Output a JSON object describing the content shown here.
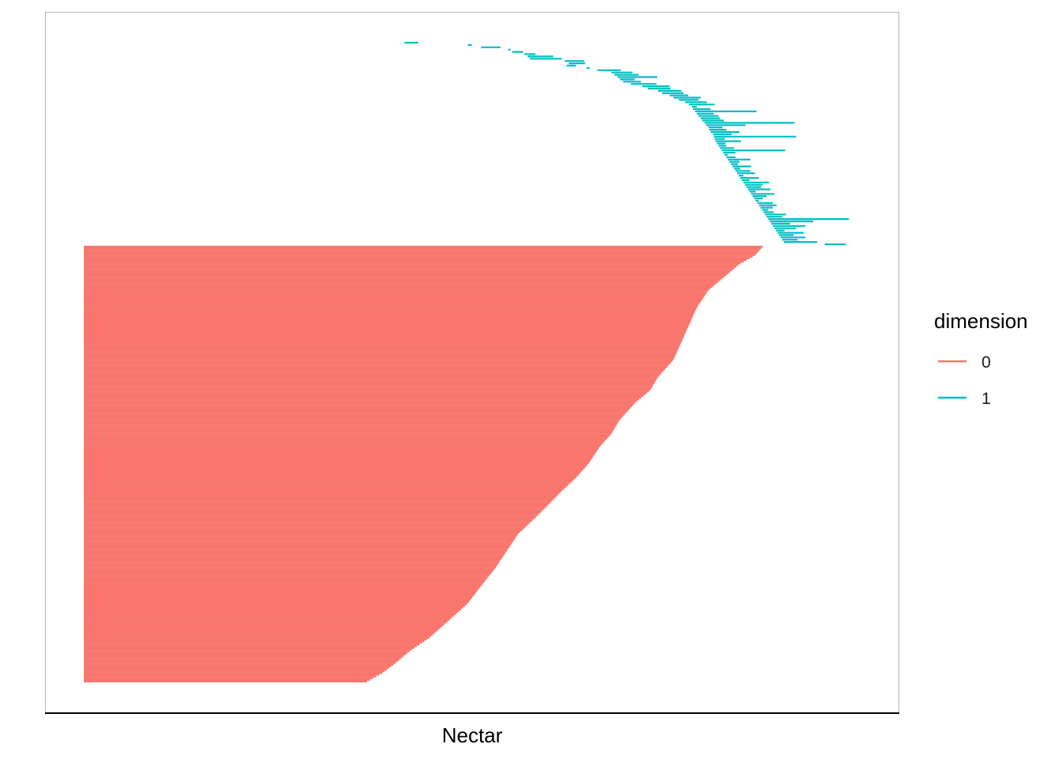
{
  "chart_data": {
    "type": "barcode",
    "xlabel": "Nectar",
    "ylabel": "",
    "legend": {
      "title": "dimension",
      "position": "right",
      "entries": [
        {
          "label": "0",
          "color": "#F8766D"
        },
        {
          "label": "1",
          "color": "#00BFC4"
        }
      ]
    },
    "x_ticks_shown": false,
    "y_ticks_shown": false,
    "grid": false,
    "dimension_0": {
      "bar_count": 260,
      "birth": 0,
      "death_profile": [
        [
          0.0,
          0.875
        ],
        [
          0.02,
          0.865
        ],
        [
          0.04,
          0.845
        ],
        [
          0.07,
          0.825
        ],
        [
          0.1,
          0.805
        ],
        [
          0.14,
          0.79
        ],
        [
          0.18,
          0.78
        ],
        [
          0.22,
          0.77
        ],
        [
          0.26,
          0.76
        ],
        [
          0.3,
          0.74
        ],
        [
          0.33,
          0.73
        ],
        [
          0.36,
          0.71
        ],
        [
          0.4,
          0.69
        ],
        [
          0.43,
          0.68
        ],
        [
          0.46,
          0.665
        ],
        [
          0.5,
          0.65
        ],
        [
          0.53,
          0.635
        ],
        [
          0.56,
          0.617
        ],
        [
          0.6,
          0.595
        ],
        [
          0.63,
          0.578
        ],
        [
          0.66,
          0.56
        ],
        [
          0.7,
          0.545
        ],
        [
          0.74,
          0.53
        ],
        [
          0.78,
          0.512
        ],
        [
          0.82,
          0.495
        ],
        [
          0.86,
          0.47
        ],
        [
          0.9,
          0.445
        ],
        [
          0.93,
          0.42
        ],
        [
          0.96,
          0.4
        ],
        [
          0.98,
          0.385
        ],
        [
          1.0,
          0.365
        ]
      ]
    },
    "dimension_1": {
      "bars": [
        [
          0.413,
          0.431
        ],
        [
          0.495,
          0.5
        ],
        [
          0.512,
          0.537
        ],
        [
          0.547,
          0.55
        ],
        [
          0.552,
          0.566
        ],
        [
          0.568,
          0.582
        ],
        [
          0.572,
          0.605
        ],
        [
          0.575,
          0.616
        ],
        [
          0.62,
          0.645
        ],
        [
          0.625,
          0.646
        ],
        [
          0.622,
          0.634
        ],
        [
          0.648,
          0.652
        ],
        [
          0.662,
          0.692
        ],
        [
          0.68,
          0.707
        ],
        [
          0.684,
          0.715
        ],
        [
          0.688,
          0.739
        ],
        [
          0.691,
          0.71
        ],
        [
          0.695,
          0.718
        ],
        [
          0.705,
          0.738
        ],
        [
          0.72,
          0.755
        ],
        [
          0.727,
          0.756
        ],
        [
          0.74,
          0.77
        ],
        [
          0.745,
          0.773
        ],
        [
          0.755,
          0.779
        ],
        [
          0.76,
          0.795
        ],
        [
          0.767,
          0.792
        ],
        [
          0.775,
          0.803
        ],
        [
          0.78,
          0.813
        ],
        [
          0.784,
          0.79
        ],
        [
          0.785,
          0.808
        ],
        [
          0.788,
          0.867
        ],
        [
          0.79,
          0.812
        ],
        [
          0.792,
          0.818
        ],
        [
          0.795,
          0.82
        ],
        [
          0.797,
          0.825
        ],
        [
          0.8,
          0.916
        ],
        [
          0.802,
          0.853
        ],
        [
          0.805,
          0.823
        ],
        [
          0.806,
          0.828
        ],
        [
          0.808,
          0.845
        ],
        [
          0.811,
          0.835
        ],
        [
          0.812,
          0.918
        ],
        [
          0.813,
          0.826
        ],
        [
          0.814,
          0.847
        ],
        [
          0.816,
          0.827
        ],
        [
          0.818,
          0.828
        ],
        [
          0.82,
          0.838
        ],
        [
          0.822,
          0.904
        ],
        [
          0.824,
          0.84
        ],
        [
          0.826,
          0.83
        ],
        [
          0.828,
          0.84
        ],
        [
          0.83,
          0.859
        ],
        [
          0.832,
          0.845
        ],
        [
          0.834,
          0.843
        ],
        [
          0.836,
          0.86
        ],
        [
          0.838,
          0.846
        ],
        [
          0.84,
          0.859
        ],
        [
          0.842,
          0.865
        ],
        [
          0.844,
          0.85
        ],
        [
          0.846,
          0.87
        ],
        [
          0.848,
          0.858
        ],
        [
          0.85,
          0.883
        ],
        [
          0.852,
          0.875
        ],
        [
          0.854,
          0.873
        ],
        [
          0.856,
          0.885
        ],
        [
          0.858,
          0.866
        ],
        [
          0.86,
          0.89
        ],
        [
          0.862,
          0.88
        ],
        [
          0.864,
          0.875
        ],
        [
          0.866,
          0.87
        ],
        [
          0.868,
          0.888
        ],
        [
          0.87,
          0.893
        ],
        [
          0.872,
          0.888
        ],
        [
          0.874,
          0.882
        ],
        [
          0.876,
          0.889
        ],
        [
          0.878,
          0.905
        ],
        [
          0.88,
          0.9
        ],
        [
          0.882,
          0.986
        ],
        [
          0.884,
          0.94
        ],
        [
          0.886,
          0.91
        ],
        [
          0.888,
          0.93
        ],
        [
          0.89,
          0.918
        ],
        [
          0.892,
          0.903
        ],
        [
          0.894,
          0.928
        ],
        [
          0.896,
          0.915
        ],
        [
          0.898,
          0.93
        ],
        [
          0.9,
          0.92
        ],
        [
          0.902,
          0.945
        ],
        [
          0.955,
          0.982
        ]
      ]
    }
  }
}
